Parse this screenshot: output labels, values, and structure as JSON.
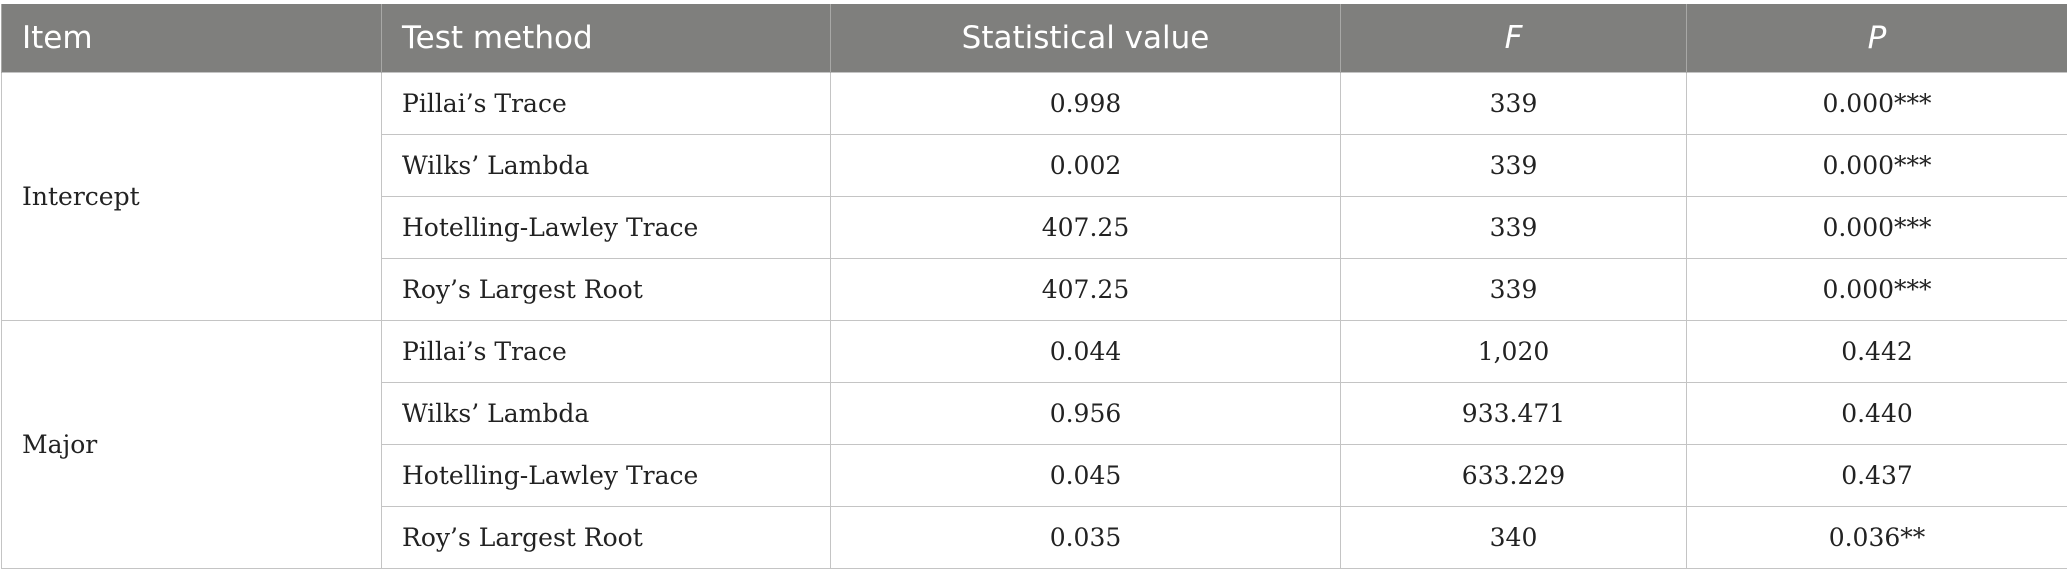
{
  "headers": {
    "item": "Item",
    "method": "Test method",
    "stat": "Statistical value",
    "f": "F",
    "p": "P"
  },
  "groups": [
    {
      "name": "Intercept",
      "rows": [
        {
          "method": "Pillai’s Trace",
          "stat": "0.998",
          "f": "339",
          "p": "0.000***"
        },
        {
          "method": "Wilks’ Lambda",
          "stat": "0.002",
          "f": "339",
          "p": "0.000***"
        },
        {
          "method": "Hotelling-Lawley Trace",
          "stat": "407.25",
          "f": "339",
          "p": "0.000***"
        },
        {
          "method": "Roy’s Largest Root",
          "stat": "407.25",
          "f": "339",
          "p": "0.000***"
        }
      ]
    },
    {
      "name": "Major",
      "rows": [
        {
          "method": "Pillai’s Trace",
          "stat": "0.044",
          "f": "1,020",
          "p": "0.442"
        },
        {
          "method": "Wilks’ Lambda",
          "stat": "0.956",
          "f": "933.471",
          "p": "0.440"
        },
        {
          "method": "Hotelling-Lawley Trace",
          "stat": "0.045",
          "f": "633.229",
          "p": "0.437"
        },
        {
          "method": "Roy’s Largest Root",
          "stat": "0.035",
          "f": "340",
          "p": "0.036**"
        }
      ]
    }
  ]
}
